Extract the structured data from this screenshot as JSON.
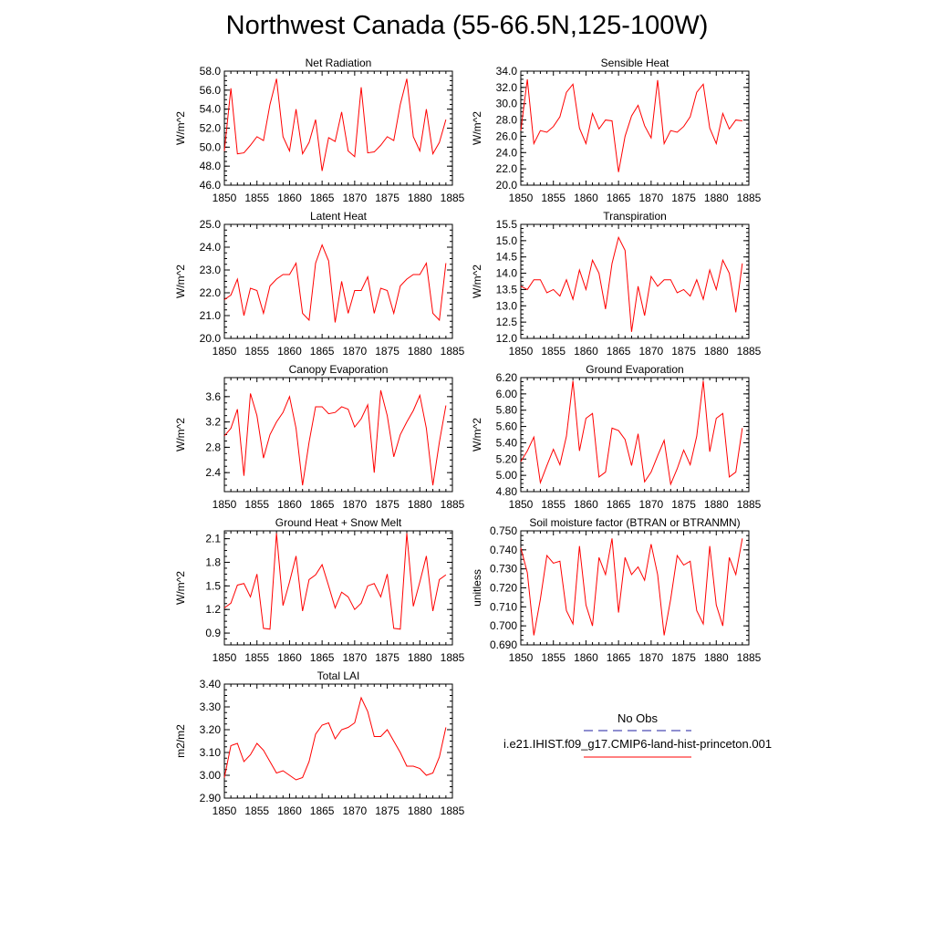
{
  "title": "Northwest Canada (55-66.5N,125-100W)",
  "legend": {
    "obs_label": "No Obs",
    "obs_color": "#1f1fa0",
    "model_label": "i.e21.IHIST.f09_g17.CMIP6-land-hist-princeton.001",
    "model_color": "#ff0000"
  },
  "chart_data": [
    {
      "type": "line",
      "title": "Net Radiation",
      "ylabel": "W/m^2",
      "xlim": [
        1850,
        1885
      ],
      "ylim": [
        46.0,
        58.0
      ],
      "xticks": [
        1850,
        1855,
        1860,
        1865,
        1870,
        1875,
        1880,
        1885
      ],
      "yticks": [
        "46.0",
        "48.0",
        "50.0",
        "52.0",
        "54.0",
        "56.0",
        "58.0"
      ],
      "series": [
        {
          "x": [
            1850,
            1851,
            1852,
            1853,
            1854,
            1855,
            1856,
            1857,
            1858,
            1859,
            1860,
            1861,
            1862,
            1863,
            1864,
            1865,
            1866,
            1867,
            1868,
            1869,
            1870,
            1871,
            1872,
            1873,
            1874,
            1875,
            1876,
            1877,
            1878,
            1879,
            1880,
            1881,
            1882,
            1883,
            1884
          ],
          "y": [
            49.6,
            56.2,
            49.3,
            49.4,
            50.2,
            51.1,
            50.7,
            54.5,
            57.2,
            51.1,
            49.6,
            54.0,
            49.3,
            50.5,
            52.9,
            47.5,
            51.0,
            50.6,
            53.7,
            49.6,
            49.0,
            56.3,
            49.4,
            49.5,
            50.2,
            51.1,
            50.7,
            54.5,
            57.2,
            51.1,
            49.6,
            54.0,
            49.3,
            50.5,
            52.9
          ]
        }
      ]
    },
    {
      "type": "line",
      "title": "Sensible Heat",
      "ylabel": "W/m^2",
      "xlim": [
        1850,
        1885
      ],
      "ylim": [
        20.0,
        34.0
      ],
      "xticks": [
        1850,
        1855,
        1860,
        1865,
        1870,
        1875,
        1880,
        1885
      ],
      "yticks": [
        "20.0",
        "22.0",
        "24.0",
        "26.0",
        "28.0",
        "30.0",
        "32.0",
        "34.0"
      ],
      "series": [
        {
          "x": [
            1850,
            1851,
            1852,
            1853,
            1854,
            1855,
            1856,
            1857,
            1858,
            1859,
            1860,
            1861,
            1862,
            1863,
            1864,
            1865,
            1866,
            1867,
            1868,
            1869,
            1870,
            1871,
            1872,
            1873,
            1874,
            1875,
            1876,
            1877,
            1878,
            1879,
            1880,
            1881,
            1882,
            1883,
            1884
          ],
          "y": [
            26.7,
            33.0,
            25.1,
            26.7,
            26.5,
            27.2,
            28.4,
            31.4,
            32.4,
            27.0,
            25.1,
            28.8,
            26.9,
            28.0,
            27.9,
            21.6,
            26.0,
            28.5,
            29.8,
            27.3,
            25.8,
            32.9,
            25.1,
            26.7,
            26.5,
            27.2,
            28.4,
            31.4,
            32.4,
            27.0,
            25.1,
            28.8,
            26.9,
            28.0,
            27.9
          ]
        }
      ]
    },
    {
      "type": "line",
      "title": "Latent Heat",
      "ylabel": "W/m^2",
      "xlim": [
        1850,
        1885
      ],
      "ylim": [
        20.0,
        25.0
      ],
      "xticks": [
        1850,
        1855,
        1860,
        1865,
        1870,
        1875,
        1880,
        1885
      ],
      "yticks": [
        "20.0",
        "21.0",
        "22.0",
        "23.0",
        "24.0",
        "25.0"
      ],
      "series": [
        {
          "x": [
            1850,
            1851,
            1852,
            1853,
            1854,
            1855,
            1856,
            1857,
            1858,
            1859,
            1860,
            1861,
            1862,
            1863,
            1864,
            1865,
            1866,
            1867,
            1868,
            1869,
            1870,
            1871,
            1872,
            1873,
            1874,
            1875,
            1876,
            1877,
            1878,
            1879,
            1880,
            1881,
            1882,
            1883,
            1884
          ],
          "y": [
            21.7,
            21.9,
            22.6,
            21.0,
            22.2,
            22.1,
            21.1,
            22.3,
            22.6,
            22.8,
            22.8,
            23.3,
            21.1,
            20.8,
            23.3,
            24.1,
            23.4,
            20.7,
            22.5,
            21.1,
            22.1,
            22.1,
            22.7,
            21.1,
            22.2,
            22.1,
            21.1,
            22.3,
            22.6,
            22.8,
            22.8,
            23.3,
            21.1,
            20.8,
            23.3
          ]
        }
      ]
    },
    {
      "type": "line",
      "title": "Transpiration",
      "ylabel": "W/m^2",
      "xlim": [
        1850,
        1885
      ],
      "ylim": [
        12.0,
        15.5
      ],
      "xticks": [
        1850,
        1855,
        1860,
        1865,
        1870,
        1875,
        1880,
        1885
      ],
      "yticks": [
        "12.0",
        "12.5",
        "13.0",
        "13.5",
        "14.0",
        "14.5",
        "15.0",
        "15.5"
      ],
      "series": [
        {
          "x": [
            1850,
            1851,
            1852,
            1853,
            1854,
            1855,
            1856,
            1857,
            1858,
            1859,
            1860,
            1861,
            1862,
            1863,
            1864,
            1865,
            1866,
            1867,
            1868,
            1869,
            1870,
            1871,
            1872,
            1873,
            1874,
            1875,
            1876,
            1877,
            1878,
            1879,
            1880,
            1881,
            1882,
            1883,
            1884
          ],
          "y": [
            13.6,
            13.5,
            13.8,
            13.8,
            13.4,
            13.5,
            13.3,
            13.8,
            13.2,
            14.1,
            13.5,
            14.4,
            14.0,
            12.9,
            14.3,
            15.1,
            14.7,
            12.2,
            13.6,
            12.7,
            13.9,
            13.6,
            13.8,
            13.8,
            13.4,
            13.5,
            13.3,
            13.8,
            13.2,
            14.1,
            13.5,
            14.4,
            14.0,
            12.8,
            14.3
          ]
        }
      ]
    },
    {
      "type": "line",
      "title": "Canopy Evaporation",
      "ylabel": "W/m^2",
      "xlim": [
        1850,
        1885
      ],
      "ylim": [
        2.1,
        3.9
      ],
      "xticks": [
        1850,
        1855,
        1860,
        1865,
        1870,
        1875,
        1880,
        1885
      ],
      "yticks": [
        "2.4",
        "2.8",
        "3.2",
        "3.6"
      ],
      "series": [
        {
          "x": [
            1850,
            1851,
            1852,
            1853,
            1854,
            1855,
            1856,
            1857,
            1858,
            1859,
            1860,
            1861,
            1862,
            1863,
            1864,
            1865,
            1866,
            1867,
            1868,
            1869,
            1870,
            1871,
            1872,
            1873,
            1874,
            1875,
            1876,
            1877,
            1878,
            1879,
            1880,
            1881,
            1882,
            1883,
            1884
          ],
          "y": [
            2.98,
            3.1,
            3.4,
            2.35,
            3.65,
            3.3,
            2.63,
            3.0,
            3.2,
            3.35,
            3.6,
            3.1,
            2.2,
            2.88,
            3.44,
            3.44,
            3.33,
            3.35,
            3.44,
            3.4,
            3.12,
            3.25,
            3.47,
            2.4,
            3.7,
            3.3,
            2.65,
            3.0,
            3.2,
            3.38,
            3.62,
            3.1,
            2.2,
            2.88,
            3.46
          ]
        }
      ]
    },
    {
      "type": "line",
      "title": "Ground Evaporation",
      "ylabel": "W/m^2",
      "xlim": [
        1850,
        1885
      ],
      "ylim": [
        4.8,
        6.2
      ],
      "xticks": [
        1850,
        1855,
        1860,
        1865,
        1870,
        1875,
        1880,
        1885
      ],
      "yticks": [
        "4.80",
        "5.00",
        "5.20",
        "5.40",
        "5.60",
        "5.80",
        "6.00",
        "6.20"
      ],
      "series": [
        {
          "x": [
            1850,
            1851,
            1852,
            1853,
            1854,
            1855,
            1856,
            1857,
            1858,
            1859,
            1860,
            1861,
            1862,
            1863,
            1864,
            1865,
            1866,
            1867,
            1868,
            1869,
            1870,
            1871,
            1872,
            1873,
            1874,
            1875,
            1876,
            1877,
            1878,
            1879,
            1880,
            1881,
            1882,
            1883,
            1884
          ],
          "y": [
            5.17,
            5.3,
            5.47,
            4.91,
            5.12,
            5.32,
            5.13,
            5.48,
            6.16,
            5.3,
            5.7,
            5.76,
            4.98,
            5.04,
            5.58,
            5.55,
            5.44,
            5.12,
            5.51,
            4.92,
            5.04,
            5.24,
            5.43,
            4.89,
            5.08,
            5.31,
            5.13,
            5.48,
            6.16,
            5.29,
            5.7,
            5.76,
            4.98,
            5.04,
            5.58
          ]
        }
      ]
    },
    {
      "type": "line",
      "title": "Ground Heat + Snow Melt",
      "ylabel": "W/m^2",
      "xlim": [
        1850,
        1885
      ],
      "ylim": [
        0.75,
        2.2
      ],
      "xticks": [
        1850,
        1855,
        1860,
        1865,
        1870,
        1875,
        1880,
        1885
      ],
      "yticks": [
        "0.9",
        "1.2",
        "1.5",
        "1.8",
        "2.1"
      ],
      "series": [
        {
          "x": [
            1850,
            1851,
            1852,
            1853,
            1854,
            1855,
            1856,
            1857,
            1858,
            1859,
            1860,
            1861,
            1862,
            1863,
            1864,
            1865,
            1866,
            1867,
            1868,
            1869,
            1870,
            1871,
            1872,
            1873,
            1874,
            1875,
            1876,
            1877,
            1878,
            1879,
            1880,
            1881,
            1882,
            1883,
            1884
          ],
          "y": [
            1.22,
            1.28,
            1.51,
            1.53,
            1.36,
            1.65,
            0.96,
            0.95,
            2.17,
            1.25,
            1.55,
            1.88,
            1.18,
            1.58,
            1.64,
            1.77,
            1.5,
            1.22,
            1.42,
            1.36,
            1.2,
            1.28,
            1.5,
            1.53,
            1.36,
            1.65,
            0.96,
            0.95,
            2.17,
            1.24,
            1.55,
            1.88,
            1.18,
            1.58,
            1.64
          ]
        }
      ]
    },
    {
      "type": "line",
      "title": "Soil moisture factor (BTRAN or BTRANMN)",
      "ylabel": "unitless",
      "xlim": [
        1850,
        1885
      ],
      "ylim": [
        0.69,
        0.75
      ],
      "xticks": [
        1850,
        1855,
        1860,
        1865,
        1870,
        1875,
        1880,
        1885
      ],
      "yticks": [
        "0.690",
        "0.700",
        "0.710",
        "0.720",
        "0.730",
        "0.740",
        "0.750"
      ],
      "series": [
        {
          "x": [
            1850,
            1851,
            1852,
            1853,
            1854,
            1855,
            1856,
            1857,
            1858,
            1859,
            1860,
            1861,
            1862,
            1863,
            1864,
            1865,
            1866,
            1867,
            1868,
            1869,
            1870,
            1871,
            1872,
            1873,
            1874,
            1875,
            1876,
            1877,
            1878,
            1879,
            1880,
            1881,
            1882,
            1883,
            1884
          ],
          "y": [
            0.741,
            0.728,
            0.695,
            0.714,
            0.737,
            0.733,
            0.734,
            0.708,
            0.701,
            0.742,
            0.711,
            0.7,
            0.736,
            0.727,
            0.746,
            0.707,
            0.736,
            0.727,
            0.731,
            0.724,
            0.743,
            0.727,
            0.695,
            0.714,
            0.737,
            0.732,
            0.734,
            0.708,
            0.701,
            0.742,
            0.711,
            0.7,
            0.736,
            0.727,
            0.746
          ]
        }
      ]
    },
    {
      "type": "line",
      "title": "Total LAI",
      "ylabel": "m2/m2",
      "xlim": [
        1850,
        1885
      ],
      "ylim": [
        2.9,
        3.4
      ],
      "xticks": [
        1850,
        1855,
        1860,
        1865,
        1870,
        1875,
        1880,
        1885
      ],
      "yticks": [
        "2.90",
        "3.00",
        "3.10",
        "3.20",
        "3.30",
        "3.40"
      ],
      "series": [
        {
          "x": [
            1850,
            1851,
            1852,
            1853,
            1854,
            1855,
            1856,
            1857,
            1858,
            1859,
            1860,
            1861,
            1862,
            1863,
            1864,
            1865,
            1866,
            1867,
            1868,
            1869,
            1870,
            1871,
            1872,
            1873,
            1874,
            1875,
            1876,
            1877,
            1878,
            1879,
            1880,
            1881,
            1882,
            1883,
            1884
          ],
          "y": [
            2.99,
            3.13,
            3.14,
            3.06,
            3.09,
            3.14,
            3.11,
            3.06,
            3.01,
            3.02,
            3.0,
            2.98,
            2.99,
            3.06,
            3.18,
            3.22,
            3.23,
            3.16,
            3.2,
            3.21,
            3.23,
            3.34,
            3.28,
            3.17,
            3.17,
            3.2,
            3.15,
            3.1,
            3.04,
            3.04,
            3.03,
            3.0,
            3.01,
            3.08,
            3.21
          ]
        }
      ]
    }
  ]
}
